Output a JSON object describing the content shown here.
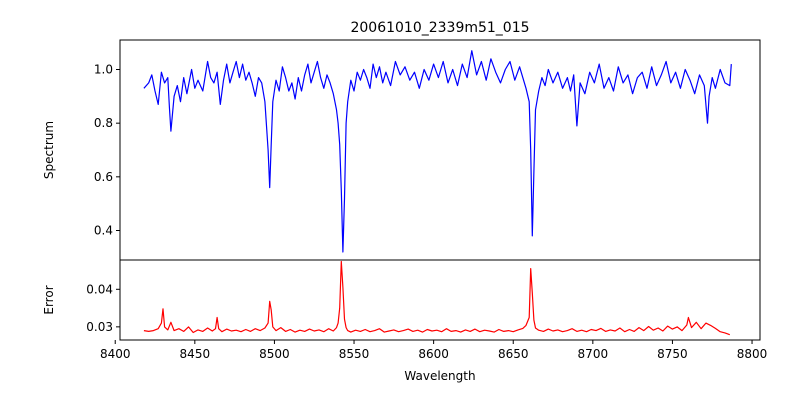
{
  "chart_data": {
    "type": "line",
    "title": "20061010_2339m51_015",
    "xlabel": "Wavelength",
    "xlim": [
      8403,
      8805
    ],
    "xticks": [
      8400,
      8450,
      8500,
      8550,
      8600,
      8650,
      8700,
      8750,
      8800
    ],
    "xtick_labels": [
      "8400",
      "8450",
      "8500",
      "8550",
      "8600",
      "8650",
      "8700",
      "8750",
      "8800"
    ],
    "grid": false,
    "panels": [
      {
        "ylabel": "Spectrum",
        "ylim": [
          0.29,
          1.11
        ],
        "yticks": [
          0.4,
          0.6,
          0.8,
          1.0
        ],
        "ytick_labels": [
          "0.4",
          "0.6",
          "0.8",
          "1.0"
        ],
        "series": [
          {
            "color": "#0000ff",
            "x": [
              8418,
              8421,
              8423,
              8425,
              8427,
              8429,
              8431,
              8433,
              8434,
              8435,
              8437,
              8439,
              8441,
              8443,
              8445,
              8448,
              8450,
              8452,
              8455,
              8458,
              8460,
              8462,
              8464,
              8466,
              8468,
              8470,
              8472,
              8474,
              8476,
              8478,
              8480,
              8482,
              8484,
              8486,
              8488,
              8490,
              8492,
              8494,
              8496,
              8497,
              8498,
              8499,
              8501,
              8503,
              8505,
              8507,
              8509,
              8511,
              8513,
              8515,
              8517,
              8519,
              8521,
              8523,
              8525,
              8527,
              8529,
              8531,
              8533,
              8535,
              8537,
              8539,
              8540,
              8541,
              8542,
              8543,
              8544,
              8545,
              8546,
              8548,
              8550,
              8552,
              8554,
              8556,
              8558,
              8560,
              8562,
              8564,
              8566,
              8568,
              8570,
              8573,
              8576,
              8579,
              8582,
              8585,
              8588,
              8591,
              8594,
              8597,
              8600,
              8603,
              8606,
              8609,
              8612,
              8615,
              8618,
              8621,
              8624,
              8627,
              8630,
              8633,
              8636,
              8639,
              8642,
              8645,
              8648,
              8651,
              8654,
              8656,
              8658,
              8660,
              8661,
              8662,
              8663,
              8664,
              8666,
              8668,
              8670,
              8672,
              8675,
              8678,
              8681,
              8684,
              8686,
              8688,
              8690,
              8692,
              8695,
              8698,
              8701,
              8704,
              8707,
              8710,
              8713,
              8716,
              8719,
              8722,
              8725,
              8728,
              8731,
              8734,
              8737,
              8740,
              8743,
              8746,
              8749,
              8752,
              8755,
              8758,
              8761,
              8764,
              8767,
              8770,
              8772,
              8773,
              8775,
              8777,
              8780,
              8783,
              8786,
              8787
            ],
            "y": [
              0.93,
              0.95,
              0.98,
              0.92,
              0.87,
              0.99,
              0.95,
              0.97,
              0.86,
              0.77,
              0.9,
              0.94,
              0.88,
              0.97,
              0.91,
              1.0,
              0.93,
              0.96,
              0.92,
              1.03,
              0.97,
              0.95,
              0.99,
              0.87,
              0.96,
              1.02,
              0.95,
              0.99,
              1.03,
              0.97,
              1.02,
              0.96,
              0.99,
              0.95,
              0.9,
              0.97,
              0.95,
              0.88,
              0.7,
              0.56,
              0.72,
              0.88,
              0.96,
              0.92,
              1.01,
              0.97,
              0.92,
              0.95,
              0.89,
              0.97,
              0.92,
              0.98,
              1.02,
              0.95,
              0.99,
              1.03,
              0.97,
              0.93,
              0.98,
              0.95,
              0.91,
              0.85,
              0.8,
              0.72,
              0.55,
              0.32,
              0.52,
              0.8,
              0.88,
              0.96,
              0.92,
              0.99,
              0.96,
              1.0,
              0.97,
              0.93,
              1.02,
              0.97,
              1.01,
              0.95,
              0.99,
              0.94,
              1.03,
              0.98,
              1.01,
              0.96,
              0.99,
              0.93,
              1.0,
              0.96,
              1.02,
              0.97,
              1.03,
              0.95,
              1.0,
              0.94,
              1.02,
              0.97,
              1.07,
              0.98,
              1.03,
              0.96,
              1.04,
              0.99,
              0.95,
              1.0,
              1.03,
              0.96,
              1.01,
              0.97,
              0.93,
              0.88,
              0.7,
              0.38,
              0.62,
              0.85,
              0.92,
              0.97,
              0.94,
              1.0,
              0.95,
              0.99,
              0.93,
              0.97,
              0.92,
              0.98,
              0.79,
              0.95,
              0.91,
              0.99,
              0.95,
              1.02,
              0.93,
              0.97,
              0.92,
              1.01,
              0.95,
              0.98,
              0.91,
              0.97,
              0.99,
              0.93,
              1.01,
              0.94,
              0.98,
              1.03,
              0.95,
              0.99,
              0.93,
              1.0,
              0.96,
              0.91,
              0.98,
              0.94,
              0.8,
              0.9,
              0.97,
              0.93,
              1.0,
              0.95,
              0.94,
              1.02
            ]
          }
        ]
      },
      {
        "ylabel": "Error",
        "ylim": [
          0.0265,
          0.0478
        ],
        "yticks": [
          0.03,
          0.04
        ],
        "ytick_labels": [
          "0.03",
          "0.04"
        ],
        "series": [
          {
            "color": "#ff0000",
            "x": [
              8418,
              8421,
              8424,
              8427,
              8429,
              8430,
              8431,
              8433,
              8435,
              8437,
              8440,
              8443,
              8446,
              8449,
              8452,
              8455,
              8458,
              8461,
              8463,
              8464,
              8465,
              8467,
              8470,
              8473,
              8476,
              8479,
              8482,
              8485,
              8488,
              8491,
              8494,
              8496,
              8497,
              8498,
              8499,
              8501,
              8504,
              8507,
              8510,
              8513,
              8516,
              8519,
              8522,
              8525,
              8528,
              8531,
              8534,
              8537,
              8539,
              8540,
              8541,
              8542,
              8543,
              8544,
              8545,
              8546,
              8548,
              8551,
              8554,
              8557,
              8560,
              8563,
              8566,
              8569,
              8572,
              8575,
              8578,
              8581,
              8584,
              8587,
              8590,
              8593,
              8596,
              8599,
              8602,
              8605,
              8608,
              8611,
              8614,
              8617,
              8620,
              8623,
              8626,
              8629,
              8632,
              8635,
              8638,
              8641,
              8644,
              8647,
              8650,
              8653,
              8656,
              8658,
              8660,
              8661,
              8662,
              8663,
              8664,
              8666,
              8669,
              8672,
              8675,
              8678,
              8681,
              8684,
              8687,
              8690,
              8693,
              8696,
              8699,
              8702,
              8705,
              8708,
              8711,
              8714,
              8717,
              8720,
              8723,
              8726,
              8729,
              8732,
              8735,
              8738,
              8741,
              8744,
              8747,
              8750,
              8753,
              8756,
              8759,
              8760,
              8762,
              8765,
              8768,
              8771,
              8774,
              8777,
              8780,
              8783,
              8786
            ],
            "y": [
              0.029,
              0.0288,
              0.029,
              0.0295,
              0.031,
              0.0348,
              0.03,
              0.0292,
              0.0312,
              0.029,
              0.0295,
              0.0288,
              0.03,
              0.0285,
              0.0292,
              0.0288,
              0.0297,
              0.0289,
              0.0295,
              0.0325,
              0.0295,
              0.0287,
              0.0294,
              0.0289,
              0.0291,
              0.0287,
              0.0293,
              0.0288,
              0.0295,
              0.029,
              0.0297,
              0.031,
              0.0368,
              0.0345,
              0.03,
              0.029,
              0.0298,
              0.0288,
              0.0293,
              0.0286,
              0.0291,
              0.0288,
              0.0294,
              0.0289,
              0.0292,
              0.0287,
              0.0295,
              0.0289,
              0.0298,
              0.031,
              0.035,
              0.0474,
              0.0405,
              0.032,
              0.0298,
              0.029,
              0.0286,
              0.0291,
              0.0288,
              0.0293,
              0.0287,
              0.029,
              0.0295,
              0.0286,
              0.0289,
              0.0292,
              0.0287,
              0.029,
              0.0294,
              0.0288,
              0.0291,
              0.0286,
              0.0293,
              0.0289,
              0.0291,
              0.0287,
              0.0295,
              0.0288,
              0.029,
              0.0286,
              0.0292,
              0.0288,
              0.0294,
              0.0287,
              0.0291,
              0.0289,
              0.0286,
              0.0293,
              0.0288,
              0.029,
              0.0287,
              0.0292,
              0.0296,
              0.0304,
              0.0325,
              0.0455,
              0.039,
              0.0318,
              0.0297,
              0.0291,
              0.0288,
              0.0294,
              0.0289,
              0.0292,
              0.0287,
              0.029,
              0.0295,
              0.0288,
              0.0291,
              0.0287,
              0.0293,
              0.029,
              0.0296,
              0.0288,
              0.0292,
              0.0289,
              0.0297,
              0.0287,
              0.0293,
              0.0288,
              0.0298,
              0.029,
              0.0301,
              0.0291,
              0.0297,
              0.0289,
              0.0302,
              0.0294,
              0.03,
              0.029,
              0.0305,
              0.0325,
              0.0298,
              0.0312,
              0.0295,
              0.031,
              0.0304,
              0.0296,
              0.0287,
              0.0284,
              0.0279
            ]
          }
        ]
      }
    ]
  }
}
